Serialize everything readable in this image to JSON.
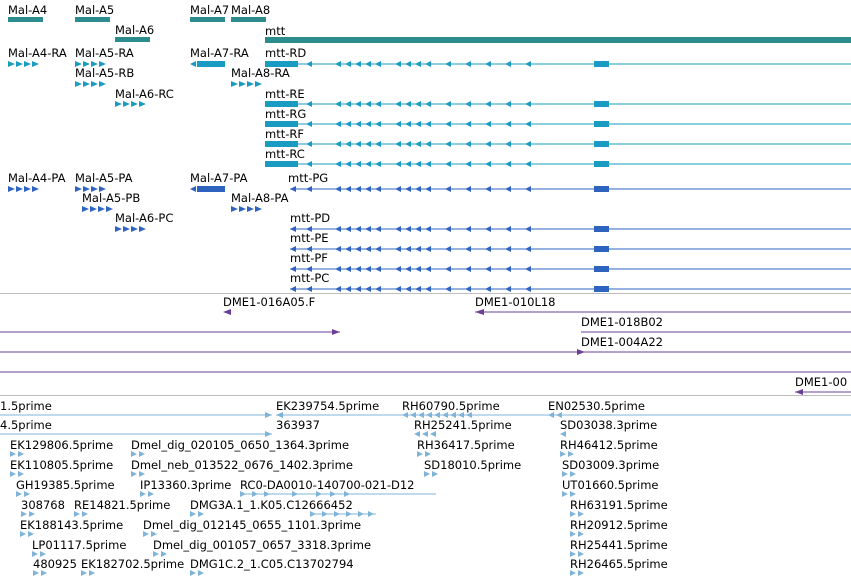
{
  "colors": {
    "gene": "#2c8c8e",
    "transcript": "#1a9bc2",
    "protein": "#2f63c0",
    "clone": "#6b3f98",
    "est": "#7fb4d9",
    "separator": "#bdbdbd"
  },
  "genes": {
    "mal_a4": "Mal-A4",
    "mal_a5": "Mal-A5",
    "mal_a6": "Mal-A6",
    "mal_a7": "Mal-A7",
    "mal_a8": "Mal-A8",
    "mtt": "mtt"
  },
  "transcripts": {
    "mal_a4_ra": "Mal-A4-RA",
    "mal_a5_ra": "Mal-A5-RA",
    "mal_a5_rb": "Mal-A5-RB",
    "mal_a6_rc": "Mal-A6-RC",
    "mal_a7_ra": "Mal-A7-RA",
    "mal_a8_ra": "Mal-A8-RA",
    "mtt_rd": "mtt-RD",
    "mtt_re": "mtt-RE",
    "mtt_rg": "mtt-RG",
    "mtt_rf": "mtt-RF",
    "mtt_rc": "mtt-RC"
  },
  "proteins": {
    "mal_a4_pa": "Mal-A4-PA",
    "mal_a5_pa": "Mal-A5-PA",
    "mal_a5_pb": "Mal-A5-PB",
    "mal_a6_pc": "Mal-A6-PC",
    "mal_a7_pa": "Mal-A7-PA",
    "mal_a8_pa": "Mal-A8-PA",
    "mtt_pg": "mtt-PG",
    "mtt_pd": "mtt-PD",
    "mtt_pe": "mtt-PE",
    "mtt_pf": "mtt-PF",
    "mtt_pc": "mtt-PC"
  },
  "clones": {
    "c1": "DME1-016A05.F",
    "c2": "DME1-010L18",
    "c3": "DME1-018B02",
    "c4": "DME1-004A22",
    "c5": "DME1-00"
  },
  "ests": {
    "e01": "1.5prime",
    "e02": "EK239754.5prime",
    "e03": "RH60790.5prime",
    "e04": "EN02530.5prime",
    "e05": "4.5prime",
    "e06": "363937",
    "e07": "RH25241.5prime",
    "e08": "SD03038.3prime",
    "e09": "EK129806.5prime",
    "e10": "Dmel_dig_020105_0650_1364.3prime",
    "e11": "RH36417.5prime",
    "e12": "RH46412.5prime",
    "e13": "EK110805.5prime",
    "e14": "Dmel_neb_013522_0676_1402.3prime",
    "e15": "SD18010.5prime",
    "e16": "SD03009.3prime",
    "e17": "GH19385.5prime",
    "e18": "IP13360.3prime",
    "e19": "RC0-DA0010-140700-021-D12",
    "e20": "UT01660.5prime",
    "e21": "308768",
    "e22": "RE14821.5prime",
    "e23": "DMG3A.1_1.K05.C12666452",
    "e24": "RH63191.5prime",
    "e25": "EK188143.5prime",
    "e26": "Dmel_dig_012145_0655_1101.3prime",
    "e27": "RH20912.5prime",
    "e28": "LP01117.5prime",
    "e29": "Dmel_dig_001057_0657_3318.3prime",
    "e30": "RH25441.5prime",
    "e31": "480925",
    "e32": "EK182702.5prime",
    "e33": "DMG1C.2_1.C05.C13702794",
    "e34": "RH26465.5prime"
  }
}
